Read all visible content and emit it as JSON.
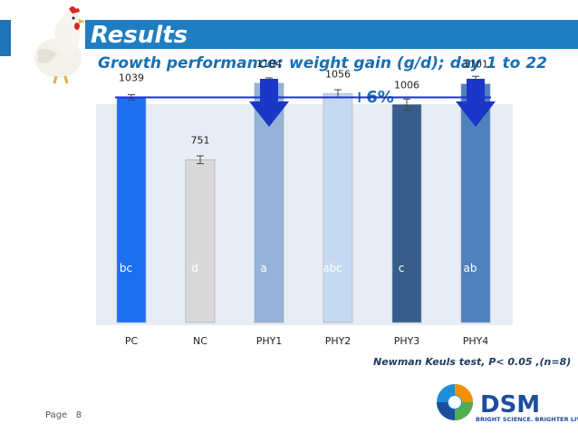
{
  "header": {
    "title": "Results",
    "subtitle": "Growth performance: weight gain (g/d); day 1 to 22"
  },
  "annotation": "+6%",
  "footnote": "Newman Keuls test, P< 0.05 ,(n=8)",
  "footer": {
    "page_label": "Page",
    "page_number": "8"
  },
  "logo": {
    "name": "DSM",
    "tagline": "BRIGHT SCIENCE. BRIGHTER LIVING."
  },
  "colors": {
    "title_bar": "#1f7dc2",
    "subtitle": "#1a6fb3",
    "reference_line": "#1a2fd6",
    "arrow": "#1a37c8",
    "plot_bg": "#e8ecf5",
    "letters": "#ffffff"
  },
  "chart_data": {
    "type": "bar",
    "categories": [
      "PC",
      "NC",
      "PHY1",
      "PHY2",
      "PHY3",
      "PHY4"
    ],
    "values": [
      1039,
      751,
      1104,
      1056,
      1006,
      1101
    ],
    "error": [
      12,
      18,
      25,
      18,
      25,
      35
    ],
    "data_labels": [
      "1039",
      "751",
      "1104",
      "1056",
      "1006",
      "1101"
    ],
    "significance_letters": [
      "bc",
      "d",
      "a",
      "abc",
      "c",
      "ab"
    ],
    "bar_colors": [
      "#1e6ff0",
      "#d9d9d9",
      "#95b3d7",
      "#c6d9f1",
      "#385d8a",
      "#4f81bd"
    ],
    "reference_value": 1039,
    "highlighted_categories": [
      "PHY1",
      "PHY4"
    ],
    "ylim": [
      0,
      1300
    ],
    "grid": false
  }
}
